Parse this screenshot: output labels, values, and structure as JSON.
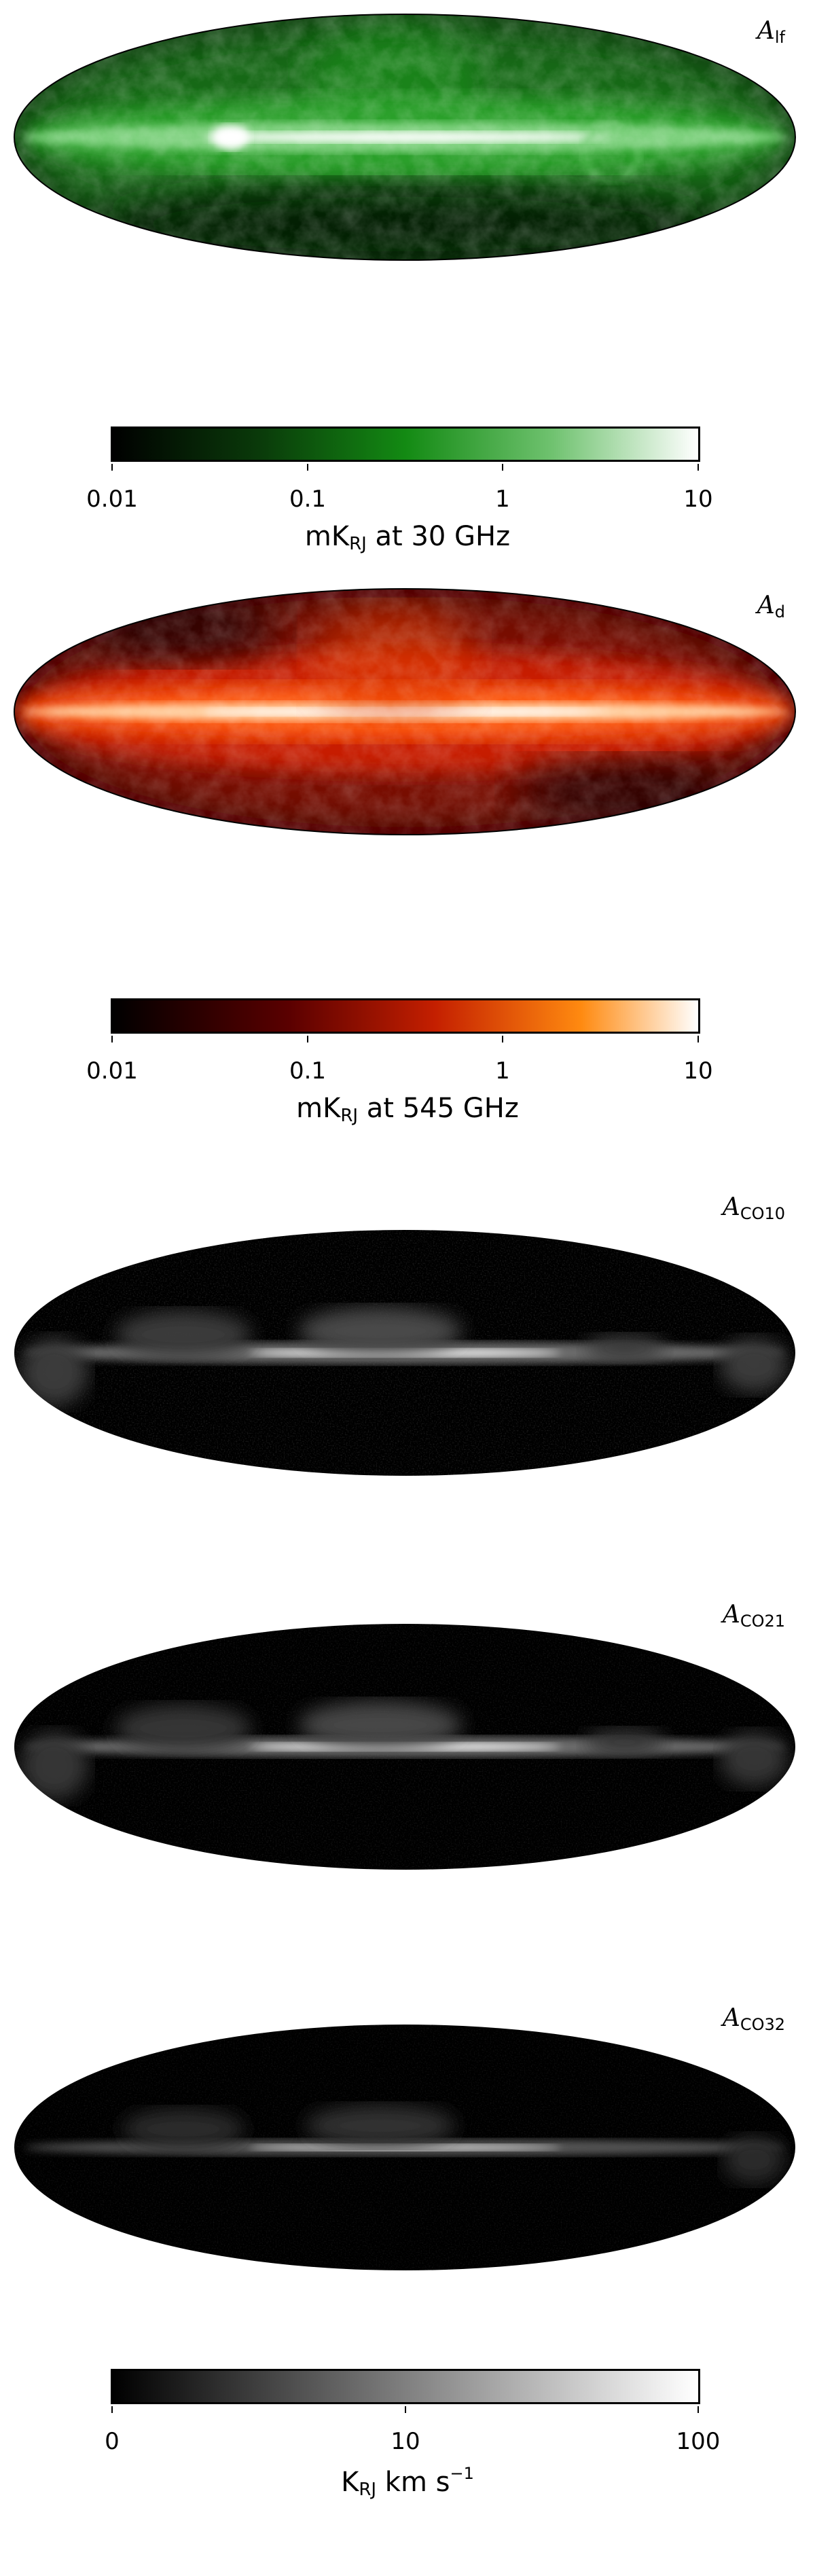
{
  "maps": [
    {
      "id": "alf",
      "symbol": "A",
      "subscript": "lf",
      "colormap": "green",
      "colors": {
        "low": "#000000",
        "mid": "#1f7a1f",
        "high": "#ffffff"
      }
    },
    {
      "id": "ad",
      "symbol": "A",
      "subscript": "d",
      "colormap": "red-orange",
      "colors": {
        "low": "#000000",
        "mid": "#cc2200",
        "high": "#ffffff"
      }
    },
    {
      "id": "aco10",
      "symbol": "A",
      "subscript": "CO10",
      "colormap": "gray",
      "colors": {
        "low": "#000000",
        "mid": "#777777",
        "high": "#ffffff"
      }
    },
    {
      "id": "aco21",
      "symbol": "A",
      "subscript": "CO21",
      "colormap": "gray",
      "colors": {
        "low": "#000000",
        "mid": "#777777",
        "high": "#ffffff"
      }
    },
    {
      "id": "aco32",
      "symbol": "A",
      "subscript": "CO32",
      "colormap": "gray",
      "colors": {
        "low": "#000000",
        "mid": "#777777",
        "high": "#ffffff"
      }
    }
  ],
  "colorbars": [
    {
      "id": "cb_lf",
      "scale": "log",
      "ticks": [
        "0.01",
        "0.1",
        "1",
        "10"
      ],
      "title_main": "mK",
      "title_sub": "RJ",
      "title_rest": " at 30 GHz"
    },
    {
      "id": "cb_d",
      "scale": "log",
      "ticks": [
        "0.01",
        "0.1",
        "1",
        "10"
      ],
      "title_main": "mK",
      "title_sub": "RJ",
      "title_rest": " at 545 GHz"
    },
    {
      "id": "cb_co",
      "scale": "log",
      "ticks": [
        "0",
        "10",
        "100"
      ],
      "title_main": "K",
      "title_sub": "RJ",
      "title_rest": " km s",
      "title_sup": "−1"
    }
  ]
}
